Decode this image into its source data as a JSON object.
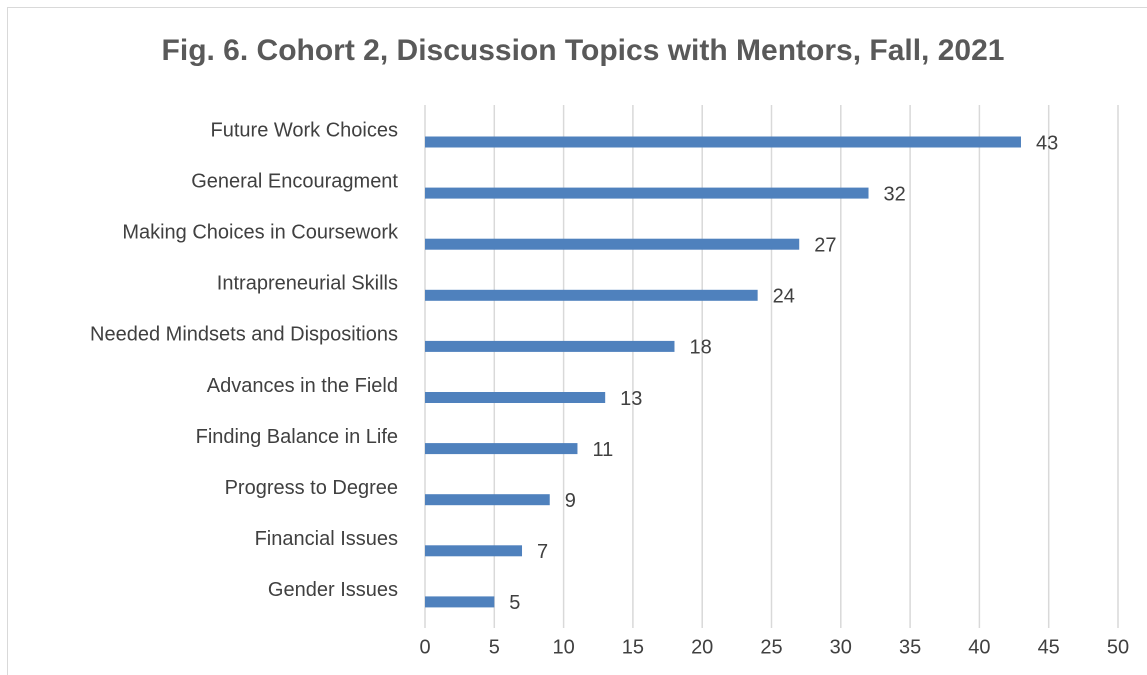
{
  "chart_data": {
    "type": "bar",
    "orientation": "horizontal",
    "title": "Fig. 6. Cohort 2, Discussion Topics with Mentors, Fall, 2021",
    "categories": [
      "Future Work Choices",
      "General Encouragment",
      "Making Choices in Coursework",
      "Intrapreneurial Skills",
      "Needed Mindsets and Dispositions",
      "Advances in the Field",
      "Finding Balance in Life",
      "Progress to Degree",
      "Financial Issues",
      "Gender Issues"
    ],
    "values": [
      43,
      32,
      27,
      24,
      18,
      13,
      11,
      9,
      7,
      5
    ],
    "color": "#4f81bd",
    "xlim": [
      0,
      50
    ],
    "xticks": [
      0,
      5,
      10,
      15,
      20,
      25,
      30,
      35,
      40,
      45,
      50
    ],
    "grid": true
  }
}
